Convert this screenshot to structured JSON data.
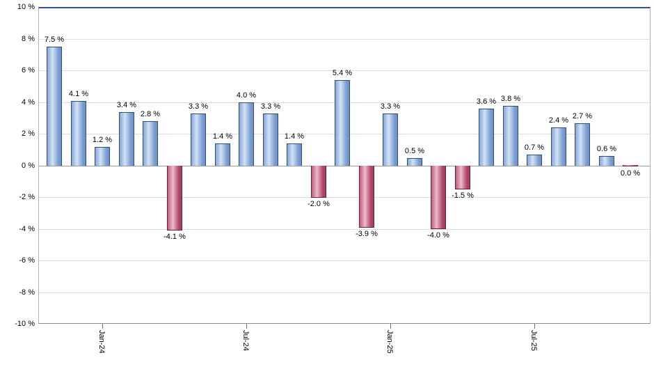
{
  "chart_data": {
    "type": "bar",
    "title": "",
    "xlabel": "",
    "ylabel": "",
    "ylim": [
      -10,
      10
    ],
    "grid": true,
    "values": [
      7.5,
      4.1,
      1.2,
      3.4,
      2.8,
      -4.1,
      3.3,
      1.4,
      4.0,
      3.3,
      1.4,
      -2.0,
      5.4,
      -3.9,
      3.3,
      0.5,
      -4.0,
      -1.5,
      3.6,
      3.8,
      0.7,
      2.4,
      2.7,
      0.6,
      0.0
    ],
    "bar_labels": [
      "7.5 %",
      "4.1 %",
      "1.2 %",
      "3.4 %",
      "2.8 %",
      "-4.1 %",
      "3.3 %",
      "1.4 %",
      "4.0 %",
      "3.3 %",
      "1.4 %",
      "-2.0 %",
      "5.4 %",
      "-3.9 %",
      "3.3 %",
      "0.5 %",
      "-4.0 %",
      "-1.5 %",
      "3.6 %",
      "3.8 %",
      "0.7 %",
      "2.4 %",
      "2.7 %",
      "0.6 %",
      "0.0 %"
    ],
    "y_tick_labels": [
      "10 %",
      "8 %",
      "6 %",
      "4 %",
      "2 %",
      "0 %",
      "-2 %",
      "-4 %",
      "-6 %",
      "-8 %",
      "-10 %"
    ],
    "x_tick_labels": [
      {
        "index": 2,
        "label": "Jan-24"
      },
      {
        "index": 8,
        "label": "Jul-24"
      },
      {
        "index": 14,
        "label": "Jan-25"
      },
      {
        "index": 20,
        "label": "Jul-25"
      }
    ],
    "colors": {
      "positive_bar": "#6a90c6",
      "positive_border": "#2e4d78",
      "negative_bar": "#b44a6c",
      "negative_border": "#6d2038",
      "plot_top_border": "#33559e",
      "gridline": "#dcdcdc",
      "zero_line": "#9a9a9a",
      "axis": "#8c8c8c",
      "label_text": "#000000"
    }
  }
}
